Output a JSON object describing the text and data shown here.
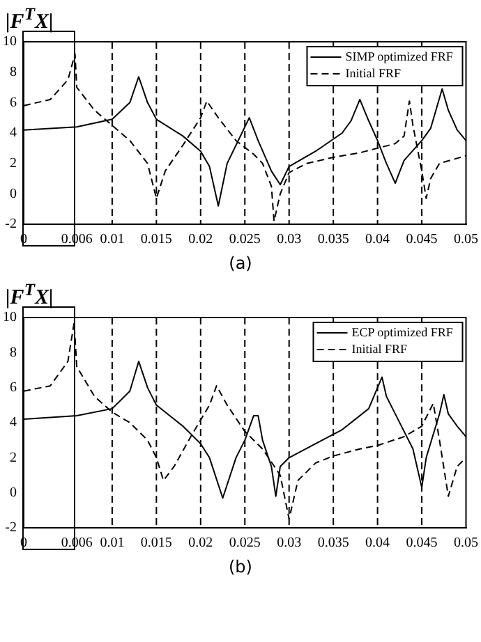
{
  "chart_data": [
    {
      "type": "line",
      "ylabel": "|F$^{T}$X|",
      "annotations": [
        "(a)"
      ],
      "xlim": [
        0,
        0.05
      ],
      "ylim": [
        -2,
        10
      ],
      "xticks": [
        0,
        0.006,
        0.01,
        0.015,
        0.02,
        0.025,
        0.03,
        0.035,
        0.04,
        0.045,
        0.05
      ],
      "yticks": [
        -2,
        0,
        2,
        4,
        6,
        8,
        10
      ],
      "grid": false,
      "legend": "top right",
      "marker": "none",
      "ref_lines": [
        {
          "axis": "x",
          "value": 0.01,
          "line_style": "dashed"
        },
        {
          "axis": "x",
          "value": 0.015,
          "line_style": "dashed"
        },
        {
          "axis": "x",
          "value": 0.02,
          "line_style": "dashed"
        },
        {
          "axis": "x",
          "value": 0.025,
          "line_style": "dashed"
        },
        {
          "axis": "x",
          "value": 0.03,
          "line_style": "dashed"
        },
        {
          "axis": "x",
          "value": 0.035,
          "line_style": "dashed"
        },
        {
          "axis": "x",
          "value": 0.04,
          "line_style": "dashed"
        },
        {
          "axis": "x",
          "value": 0.045,
          "line_style": "dashed"
        }
      ],
      "series": [
        {
          "name": "SIMP optimized FRF",
          "color": "#000000",
          "line_style": "solid",
          "x": [
            0,
            0.006,
            0.01,
            0.012,
            0.013,
            0.014,
            0.015,
            0.018,
            0.02,
            0.021,
            0.022,
            0.023,
            0.024,
            0.0255,
            0.0265,
            0.028,
            0.029,
            0.03,
            0.033,
            0.036,
            0.037,
            0.038,
            0.039,
            0.04,
            0.041,
            0.042,
            0.043,
            0.045,
            0.046,
            0.0473,
            0.048,
            0.049,
            0.05
          ],
          "values": [
            4.2,
            4.4,
            4.9,
            6,
            7.7,
            6,
            4.9,
            3.8,
            2.8,
            1.8,
            -0.8,
            2,
            3.2,
            5,
            3.5,
            1.5,
            0.6,
            1.8,
            2.8,
            4,
            4.8,
            6.2,
            4.8,
            3.5,
            2,
            0.7,
            2.2,
            3.5,
            4.3,
            6.9,
            5.5,
            4.2,
            3.5
          ]
        },
        {
          "name": "Initial FRF",
          "color": "#000000",
          "line_style": "dashed",
          "x": [
            0,
            0.003,
            0.005,
            0.0058,
            0.006,
            0.008,
            0.01,
            0.012,
            0.014,
            0.015,
            0.016,
            0.018,
            0.02,
            0.0207,
            0.022,
            0.024,
            0.026,
            0.027,
            0.028,
            0.0283,
            0.029,
            0.03,
            0.032,
            0.035,
            0.038,
            0.04,
            0.042,
            0.043,
            0.0436,
            0.044,
            0.045,
            0.0455,
            0.046,
            0.047,
            0.05
          ],
          "values": [
            5.8,
            6.2,
            7.5,
            9.2,
            7,
            5.5,
            4.5,
            3.5,
            2,
            -0.3,
            1.5,
            3.2,
            5,
            6.1,
            5,
            3.5,
            2.6,
            2,
            0.5,
            -1.8,
            0,
            1.4,
            2,
            2.4,
            2.7,
            3,
            3.3,
            3.8,
            6.1,
            4.5,
            1.5,
            -0.3,
            1,
            2,
            2.5
          ]
        }
      ]
    },
    {
      "type": "line",
      "ylabel": "|F$^{T}$X|",
      "annotations": [
        "(b)"
      ],
      "xlim": [
        0,
        0.05
      ],
      "ylim": [
        -2,
        10
      ],
      "xticks": [
        0,
        0.006,
        0.01,
        0.015,
        0.02,
        0.025,
        0.03,
        0.035,
        0.04,
        0.045,
        0.05
      ],
      "yticks": [
        -2,
        0,
        2,
        4,
        6,
        8,
        10
      ],
      "grid": false,
      "legend": "top right",
      "marker": "none",
      "ref_lines": [
        {
          "axis": "x",
          "value": 0.01,
          "line_style": "dashed"
        },
        {
          "axis": "x",
          "value": 0.015,
          "line_style": "dashed"
        },
        {
          "axis": "x",
          "value": 0.02,
          "line_style": "dashed"
        },
        {
          "axis": "x",
          "value": 0.025,
          "line_style": "dashed"
        },
        {
          "axis": "x",
          "value": 0.03,
          "line_style": "dashed"
        },
        {
          "axis": "x",
          "value": 0.035,
          "line_style": "dashed"
        },
        {
          "axis": "x",
          "value": 0.04,
          "line_style": "dashed"
        },
        {
          "axis": "x",
          "value": 0.045,
          "line_style": "dashed"
        }
      ],
      "series": [
        {
          "name": "ECP optimized FRF",
          "color": "#000000",
          "line_style": "solid",
          "x": [
            0,
            0.006,
            0.01,
            0.012,
            0.013,
            0.014,
            0.015,
            0.018,
            0.02,
            0.021,
            0.0225,
            0.024,
            0.025,
            0.026,
            0.0265,
            0.027,
            0.028,
            0.0285,
            0.029,
            0.03,
            0.033,
            0.036,
            0.039,
            0.0405,
            0.041,
            0.042,
            0.044,
            0.045,
            0.0455,
            0.047,
            0.0475,
            0.048,
            0.049,
            0.05
          ],
          "values": [
            4.2,
            4.4,
            4.8,
            5.8,
            7.5,
            6,
            5,
            3.8,
            2.8,
            2,
            -0.3,
            2,
            3,
            4.4,
            4.4,
            3,
            1.5,
            -0.2,
            1.5,
            2,
            2.8,
            3.6,
            4.8,
            6.6,
            5.5,
            4.5,
            2.5,
            0.3,
            2,
            4.5,
            5.6,
            4.5,
            3.8,
            3.2
          ]
        },
        {
          "name": "Initial FRF",
          "color": "#000000",
          "line_style": "dashed",
          "x": [
            0,
            0.003,
            0.005,
            0.0057,
            0.006,
            0.008,
            0.01,
            0.012,
            0.014,
            0.015,
            0.0158,
            0.017,
            0.019,
            0.021,
            0.0218,
            0.023,
            0.025,
            0.027,
            0.029,
            0.03,
            0.031,
            0.033,
            0.035,
            0.038,
            0.04,
            0.043,
            0.045,
            0.0463,
            0.047,
            0.048,
            0.049,
            0.05
          ],
          "values": [
            5.8,
            6.1,
            7.5,
            9.7,
            7.2,
            5.5,
            4.6,
            4,
            3,
            2,
            0.7,
            1.5,
            3.3,
            5,
            6.1,
            5,
            3.5,
            2.5,
            1,
            -1.5,
            0.7,
            1.7,
            2.1,
            2.5,
            2.7,
            3.2,
            3.8,
            5.1,
            3,
            -0.2,
            1.5,
            2
          ]
        }
      ]
    }
  ]
}
